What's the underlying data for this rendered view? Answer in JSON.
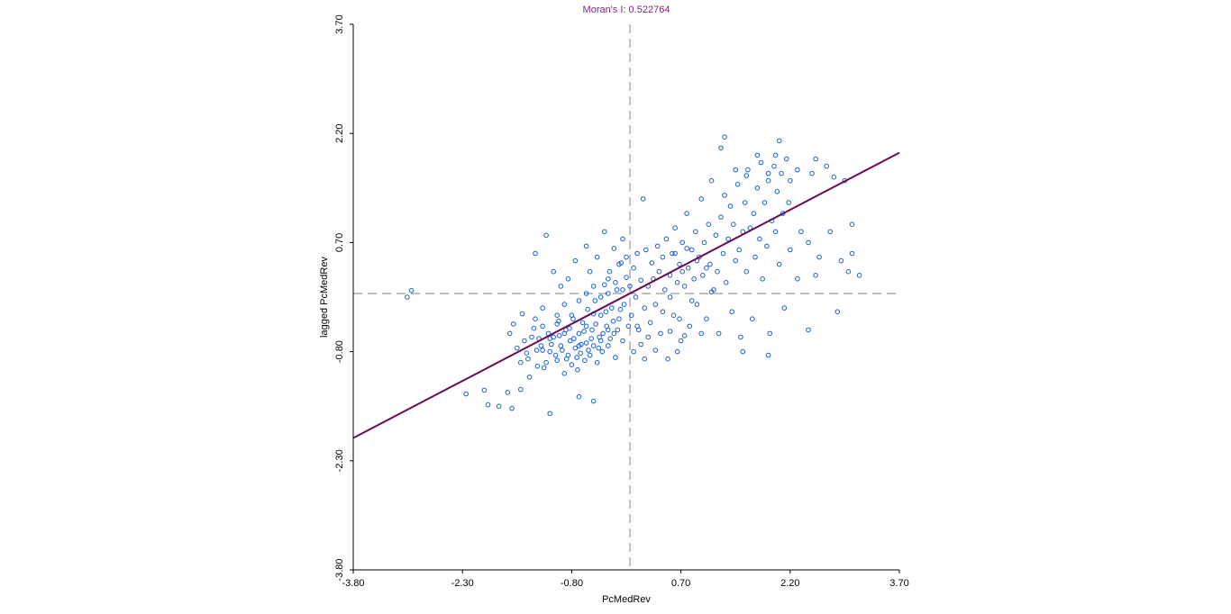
{
  "chart_data": {
    "type": "scatter",
    "title": "Moran's I: 0.522764",
    "xlabel": "PcMedRev",
    "ylabel": "lagged PcMedRev",
    "xlim": [
      -3.8,
      3.7
    ],
    "ylim": [
      -3.8,
      3.7
    ],
    "xticks": [
      "-3.80",
      "-2.30",
      "-0.80",
      "0.70",
      "2.20",
      "3.70"
    ],
    "yticks": [
      "-3.80",
      "-2.30",
      "-0.80",
      "0.70",
      "2.20",
      "3.70"
    ],
    "grid": false,
    "reference_lines": {
      "x": 0,
      "y": 0,
      "style": "dashed"
    },
    "regression_line": {
      "slope": 0.522764,
      "intercept": 0
    },
    "colors": {
      "title": "#7a2a7a",
      "points": "#1a5fd0",
      "regression": "#6a0a5a",
      "reference": "#7f7f7f",
      "axis": "#000000"
    },
    "points": [
      [
        -3.06,
        -0.05
      ],
      [
        -3.0,
        0.04
      ],
      [
        -2.25,
        -1.38
      ],
      [
        -2.0,
        -1.33
      ],
      [
        -1.95,
        -1.53
      ],
      [
        -1.8,
        -1.55
      ],
      [
        -1.68,
        -1.36
      ],
      [
        -1.62,
        -1.58
      ],
      [
        -1.5,
        -1.32
      ],
      [
        -1.1,
        -1.65
      ],
      [
        -0.7,
        -1.42
      ],
      [
        -0.5,
        -1.48
      ],
      [
        -1.65,
        -0.55
      ],
      [
        -1.55,
        -0.75
      ],
      [
        -1.48,
        -0.28
      ],
      [
        -1.4,
        -0.9
      ],
      [
        -1.35,
        -0.6
      ],
      [
        -1.3,
        -0.35
      ],
      [
        -1.27,
        -1.0
      ],
      [
        -1.22,
        -0.72
      ],
      [
        -1.2,
        -0.45
      ],
      [
        -1.15,
        -0.95
      ],
      [
        -1.1,
        -0.8
      ],
      [
        -1.05,
        -0.6
      ],
      [
        -1.0,
        -0.92
      ],
      [
        -0.98,
        -0.38
      ],
      [
        -0.95,
        -0.72
      ],
      [
        -0.9,
        -1.1
      ],
      [
        -0.88,
        -0.5
      ],
      [
        -0.85,
        -0.85
      ],
      [
        -0.82,
        -0.65
      ],
      [
        -0.8,
        -0.98
      ],
      [
        -0.78,
        -0.35
      ],
      [
        -0.75,
        -0.75
      ],
      [
        -0.72,
        -1.05
      ],
      [
        -0.7,
        -0.55
      ],
      [
        -0.68,
        -0.82
      ],
      [
        -0.65,
        -0.4
      ],
      [
        -0.62,
        -0.92
      ],
      [
        -0.6,
        -0.68
      ],
      [
        -0.58,
        -0.22
      ],
      [
        -0.55,
        -0.85
      ],
      [
        -0.52,
        -0.5
      ],
      [
        -0.5,
        -0.72
      ],
      [
        -0.48,
        -0.1
      ],
      [
        -0.45,
        -0.95
      ],
      [
        -0.42,
        -0.6
      ],
      [
        -0.4,
        -0.3
      ],
      [
        -0.38,
        -0.8
      ],
      [
        -0.35,
        0.12
      ],
      [
        -0.32,
        -0.45
      ],
      [
        -0.3,
        -0.72
      ],
      [
        -0.28,
        0.3
      ],
      [
        -0.25,
        -0.2
      ],
      [
        -0.22,
        -0.55
      ],
      [
        -0.2,
        -0.88
      ],
      [
        -0.18,
        0.05
      ],
      [
        -0.15,
        -0.35
      ],
      [
        -0.12,
        0.42
      ],
      [
        -0.1,
        -0.65
      ],
      [
        -0.08,
        -0.15
      ],
      [
        -0.05,
        0.22
      ],
      [
        -0.02,
        -0.45
      ],
      [
        0.0,
        0.1
      ],
      [
        0.02,
        -0.3
      ],
      [
        0.05,
        0.35
      ],
      [
        0.08,
        -0.05
      ],
      [
        0.1,
        0.55
      ],
      [
        0.12,
        -0.5
      ],
      [
        0.15,
        0.18
      ],
      [
        0.18,
        1.3
      ],
      [
        0.2,
        -0.2
      ],
      [
        -1.6,
        -0.42
      ],
      [
        -1.5,
        -0.95
      ],
      [
        -1.45,
        -0.65
      ],
      [
        -1.42,
        -0.82
      ],
      [
        -1.38,
        -1.15
      ],
      [
        -1.32,
        -0.48
      ],
      [
        -1.28,
        -0.78
      ],
      [
        -1.25,
        -0.62
      ],
      [
        -1.18,
        -1.02
      ],
      [
        -1.12,
        -0.55
      ],
      [
        -1.08,
        -0.7
      ],
      [
        -1.02,
        -0.85
      ],
      [
        -0.97,
        -0.58
      ],
      [
        -0.93,
        -0.78
      ],
      [
        -0.87,
        -0.9
      ],
      [
        -0.83,
        -0.48
      ],
      [
        -0.77,
        -0.62
      ],
      [
        -0.73,
        -0.88
      ],
      [
        -0.67,
        -0.7
      ],
      [
        -0.63,
        -0.52
      ],
      [
        -0.57,
        -0.78
      ],
      [
        -0.53,
        -0.62
      ],
      [
        -0.47,
        -0.42
      ],
      [
        -0.43,
        -0.75
      ],
      [
        -0.37,
        -0.55
      ],
      [
        -0.33,
        -0.25
      ],
      [
        -0.27,
        -0.62
      ],
      [
        -0.23,
        -0.38
      ],
      [
        -0.17,
        -0.5
      ],
      [
        -0.13,
        -0.22
      ],
      [
        -1.3,
        0.55
      ],
      [
        -1.15,
        0.8
      ],
      [
        -1.05,
        0.3
      ],
      [
        -0.95,
        0.1
      ],
      [
        -0.85,
        0.2
      ],
      [
        -0.75,
        0.45
      ],
      [
        -0.6,
        0.65
      ],
      [
        -0.55,
        0.3
      ],
      [
        -0.45,
        0.5
      ],
      [
        -0.35,
        0.85
      ],
      [
        -0.3,
        0.2
      ],
      [
        -0.22,
        0.62
      ],
      [
        -0.15,
        0.4
      ],
      [
        -0.1,
        0.75
      ],
      [
        -0.05,
        0.5
      ],
      [
        -1.2,
        -0.2
      ],
      [
        -1.0,
        -0.3
      ],
      [
        -0.9,
        -0.15
      ],
      [
        -0.7,
        -0.1
      ],
      [
        -0.6,
        0.0
      ],
      [
        -0.5,
        0.1
      ],
      [
        -0.4,
        -0.05
      ],
      [
        -0.3,
        0.0
      ],
      [
        -0.2,
        0.15
      ],
      [
        -0.1,
        0.05
      ],
      [
        0.22,
        0.6
      ],
      [
        0.25,
        0.1
      ],
      [
        0.28,
        -0.4
      ],
      [
        0.3,
        0.42
      ],
      [
        0.32,
        0.2
      ],
      [
        0.35,
        -0.15
      ],
      [
        0.38,
        0.65
      ],
      [
        0.4,
        0.3
      ],
      [
        0.42,
        -0.55
      ],
      [
        0.45,
        0.5
      ],
      [
        0.48,
        0.05
      ],
      [
        0.5,
        0.75
      ],
      [
        0.52,
        -0.9
      ],
      [
        0.55,
        0.25
      ],
      [
        0.58,
        0.55
      ],
      [
        0.6,
        -0.3
      ],
      [
        0.62,
        0.9
      ],
      [
        0.65,
        0.15
      ],
      [
        0.68,
        0.4
      ],
      [
        0.7,
        -0.65
      ],
      [
        0.72,
        0.7
      ],
      [
        0.75,
        0.1
      ],
      [
        0.78,
        1.1
      ],
      [
        0.8,
        0.35
      ],
      [
        0.82,
        -0.45
      ],
      [
        0.85,
        0.6
      ],
      [
        0.88,
        0.2
      ],
      [
        0.9,
        0.85
      ],
      [
        0.92,
        -0.15
      ],
      [
        0.95,
        0.5
      ],
      [
        0.98,
        1.3
      ],
      [
        1.0,
        0.25
      ],
      [
        1.02,
        0.7
      ],
      [
        1.05,
        -0.35
      ],
      [
        1.08,
        0.95
      ],
      [
        1.1,
        0.4
      ],
      [
        1.12,
        1.55
      ],
      [
        1.15,
        0.05
      ],
      [
        1.18,
        0.8
      ],
      [
        1.2,
        0.3
      ],
      [
        1.22,
        -0.55
      ],
      [
        1.25,
        1.05
      ],
      [
        1.28,
        0.55
      ],
      [
        1.3,
        1.35
      ],
      [
        1.32,
        0.15
      ],
      [
        1.35,
        0.75
      ],
      [
        1.38,
        1.2
      ],
      [
        1.4,
        -0.25
      ],
      [
        1.42,
        0.95
      ],
      [
        1.45,
        0.45
      ],
      [
        1.48,
        1.5
      ],
      [
        1.5,
        0.6
      ],
      [
        1.52,
        -0.6
      ],
      [
        1.55,
        0.85
      ],
      [
        1.58,
        1.25
      ],
      [
        1.6,
        0.3
      ],
      [
        1.62,
        1.7
      ],
      [
        1.65,
        0.9
      ],
      [
        1.68,
        -0.35
      ],
      [
        1.7,
        1.1
      ],
      [
        1.72,
        0.5
      ],
      [
        1.75,
        1.45
      ],
      [
        1.78,
        0.75
      ],
      [
        1.8,
        1.8
      ],
      [
        1.82,
        0.2
      ],
      [
        1.85,
        1.25
      ],
      [
        1.88,
        0.65
      ],
      [
        1.9,
        1.55
      ],
      [
        1.92,
        -0.55
      ],
      [
        1.95,
        1.0
      ],
      [
        1.98,
        1.75
      ],
      [
        2.0,
        0.85
      ],
      [
        2.02,
        1.4
      ],
      [
        2.05,
        0.4
      ],
      [
        2.08,
        1.65
      ],
      [
        2.1,
        1.1
      ],
      [
        2.12,
        -0.2
      ],
      [
        2.15,
        1.85
      ],
      [
        2.18,
        1.25
      ],
      [
        2.2,
        0.6
      ],
      [
        1.25,
        2.0
      ],
      [
        1.45,
        1.7
      ],
      [
        1.6,
        1.62
      ],
      [
        1.75,
        1.9
      ],
      [
        1.9,
        1.65
      ],
      [
        2.0,
        1.9
      ],
      [
        2.2,
        1.55
      ],
      [
        2.3,
        1.7
      ],
      [
        2.5,
        1.65
      ],
      [
        2.55,
        1.85
      ],
      [
        2.35,
        0.85
      ],
      [
        2.45,
        0.7
      ],
      [
        2.6,
        0.5
      ],
      [
        2.75,
        0.85
      ],
      [
        2.9,
        0.45
      ],
      [
        3.0,
        0.3
      ],
      [
        3.05,
        0.95
      ],
      [
        3.15,
        0.25
      ],
      [
        2.05,
        2.1
      ],
      [
        1.3,
        2.15
      ],
      [
        0.55,
        -0.05
      ],
      [
        0.62,
        0.55
      ],
      [
        0.68,
        -0.35
      ],
      [
        0.72,
        0.3
      ],
      [
        0.78,
        0.62
      ],
      [
        0.85,
        -0.1
      ],
      [
        0.92,
        0.45
      ],
      [
        0.98,
        -0.55
      ],
      [
        1.05,
        0.35
      ],
      [
        1.12,
        0.02
      ],
      [
        2.3,
        0.2
      ],
      [
        2.55,
        0.25
      ],
      [
        2.7,
        1.75
      ],
      [
        2.8,
        1.6
      ],
      [
        2.95,
        1.55
      ],
      [
        3.05,
        0.55
      ],
      [
        2.85,
        -0.25
      ],
      [
        1.55,
        -0.8
      ],
      [
        1.9,
        -0.85
      ],
      [
        2.45,
        -0.5
      ],
      [
        -0.3,
        -0.5
      ],
      [
        -0.4,
        -0.65
      ],
      [
        -0.5,
        -0.28
      ],
      [
        -0.6,
        -0.45
      ],
      [
        -0.7,
        -0.72
      ],
      [
        -0.8,
        -0.3
      ],
      [
        -0.9,
        -0.55
      ],
      [
        -1.0,
        -0.42
      ],
      [
        -1.1,
        -0.62
      ],
      [
        -1.2,
        -0.78
      ],
      [
        0.05,
        -0.8
      ],
      [
        0.1,
        -0.45
      ],
      [
        0.15,
        -0.7
      ],
      [
        0.2,
        -0.9
      ],
      [
        0.25,
        -0.6
      ],
      [
        0.35,
        -0.78
      ],
      [
        0.45,
        -0.25
      ],
      [
        0.55,
        -0.52
      ],
      [
        0.65,
        -0.8
      ],
      [
        0.75,
        -0.58
      ]
    ]
  }
}
